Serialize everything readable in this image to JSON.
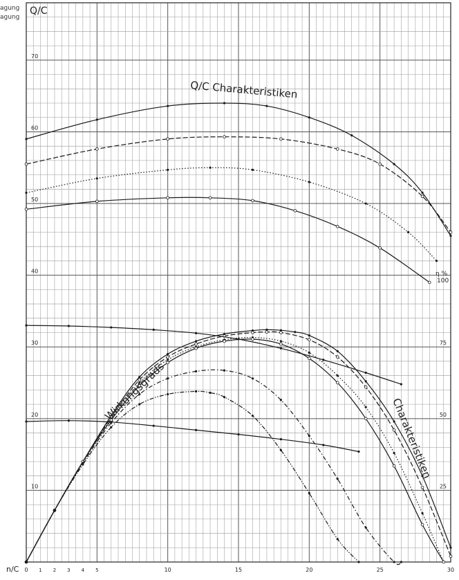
{
  "page": {
    "side_labels": [
      "agung",
      "agung"
    ]
  },
  "chart_data": {
    "type": "line",
    "title_top": "Q/C Charakteristiken",
    "title_bottom": "Wirkungsgrads",
    "title_right": "Charakteristiken",
    "ylabel": "Q/C",
    "xlabel": "n/C",
    "right_axis_label": "η %",
    "right_axis_label_value": "100",
    "xlim": [
      0,
      30
    ],
    "ylim": [
      0,
      78
    ],
    "right_ylim": [
      0,
      195
    ],
    "x_ticks": [
      0,
      1,
      2,
      3,
      4,
      5,
      10,
      15,
      20,
      25,
      30
    ],
    "x_tick_labels": [
      "0",
      "1",
      "2",
      "3",
      "4",
      "5",
      "10",
      "15",
      "20",
      "25",
      "30"
    ],
    "y_ticks": [
      10,
      20,
      30,
      40,
      50,
      60,
      70
    ],
    "y_tick_labels": [
      "10",
      "20",
      "30",
      "40",
      "50",
      "60",
      "70"
    ],
    "right_ticks": [
      25,
      50,
      75
    ],
    "right_tick_labels": [
      "25",
      "50",
      "75"
    ],
    "grid": true,
    "qc_series": [
      {
        "style": "solid",
        "marker": "dot",
        "x": [
          0,
          5,
          10,
          14,
          17,
          20,
          23,
          26,
          28,
          30
        ],
        "y": [
          59,
          61.7,
          63.6,
          64,
          63.6,
          62,
          59.5,
          55.5,
          51.5,
          45.5
        ]
      },
      {
        "style": "dashed",
        "marker": "circle",
        "x": [
          0,
          5,
          10,
          14,
          18,
          22,
          25,
          28,
          30
        ],
        "y": [
          55.5,
          57.6,
          59,
          59.3,
          59,
          57.6,
          55.5,
          51,
          46
        ]
      },
      {
        "style": "dotted",
        "marker": "dot",
        "x": [
          0,
          5,
          10,
          13,
          16,
          20,
          24,
          27,
          29
        ],
        "y": [
          51.5,
          53.5,
          54.7,
          55,
          54.7,
          53,
          50,
          46,
          42
        ]
      },
      {
        "style": "solid",
        "marker": "circle",
        "x": [
          0,
          5,
          10,
          13,
          16,
          19,
          22,
          25,
          28.5
        ],
        "y": [
          49.2,
          50.3,
          50.8,
          50.8,
          50.4,
          49,
          46.8,
          43.8,
          39
        ]
      }
    ],
    "efficiency_series": [
      {
        "style": "solid",
        "marker": "dot",
        "x": [
          0,
          2,
          4,
          6,
          8,
          10,
          12,
          14,
          16,
          17,
          18,
          19,
          20,
          22,
          24,
          26,
          28,
          30
        ],
        "y": [
          0,
          18,
          35,
          51,
          64.5,
          72.5,
          77,
          79.5,
          80.7,
          81,
          80.8,
          80.2,
          79,
          73.5,
          63,
          49,
          30,
          5
        ]
      },
      {
        "style": "dashed",
        "marker": "circle",
        "x": [
          0,
          2,
          4,
          6,
          8,
          10,
          12,
          14,
          16,
          17,
          18,
          20,
          22,
          24,
          26,
          28,
          30
        ],
        "y": [
          0,
          18,
          35,
          50.5,
          63.5,
          71.5,
          76,
          78.8,
          80,
          80.2,
          80,
          77.5,
          71.5,
          61,
          46,
          26,
          2
        ]
      },
      {
        "style": "dotted",
        "marker": "dot",
        "x": [
          0,
          2,
          4,
          6,
          8,
          10,
          12,
          14,
          16,
          18,
          20,
          22,
          24,
          26,
          28,
          29.5
        ],
        "y": [
          0,
          18,
          35,
          50,
          62.5,
          70.5,
          75,
          77.5,
          78.3,
          77,
          73,
          65,
          54,
          38,
          17,
          0
        ]
      },
      {
        "style": "solid",
        "marker": "circle",
        "x": [
          0,
          2,
          4,
          6,
          8,
          10,
          12,
          14,
          16,
          18,
          20,
          22,
          24,
          26,
          28,
          29.5
        ],
        "y": [
          0,
          18,
          35,
          49.5,
          61.5,
          69.5,
          74.5,
          77,
          77.7,
          76,
          71,
          62.5,
          50,
          33.5,
          13,
          0
        ]
      },
      {
        "style": "dashdot",
        "marker": "dot",
        "x": [
          0,
          2,
          4,
          6,
          8,
          10,
          12,
          14,
          16,
          18,
          20,
          22,
          24,
          26,
          26.5
        ],
        "y": [
          0,
          18,
          34.5,
          48.5,
          58.5,
          64,
          66.5,
          66.8,
          64,
          56.5,
          44,
          29,
          12,
          0,
          0
        ]
      },
      {
        "style": "dashdotdot",
        "marker": "dot",
        "x": [
          0,
          2,
          4,
          6,
          8,
          10,
          12,
          13,
          14,
          16,
          18,
          20,
          22,
          23.5
        ],
        "y": [
          0,
          18,
          34,
          47,
          55,
          58.5,
          59.5,
          59,
          57.5,
          51,
          39,
          24,
          8,
          0
        ]
      }
    ],
    "power_series": [
      {
        "style": "solid",
        "marker": "dot",
        "x": [
          0,
          3,
          6,
          9,
          12,
          15,
          18,
          21,
          24,
          26.5
        ],
        "y": [
          82.5,
          82.3,
          81.8,
          81,
          79.8,
          77.7,
          74.5,
          70.5,
          66,
          62
        ]
      },
      {
        "style": "solid",
        "marker": "dot",
        "x": [
          0,
          3,
          6,
          9,
          12,
          15,
          18,
          21,
          23.5
        ],
        "y": [
          49,
          49.3,
          48.8,
          47.5,
          46,
          44.5,
          42.8,
          40.8,
          38.5
        ]
      }
    ]
  }
}
